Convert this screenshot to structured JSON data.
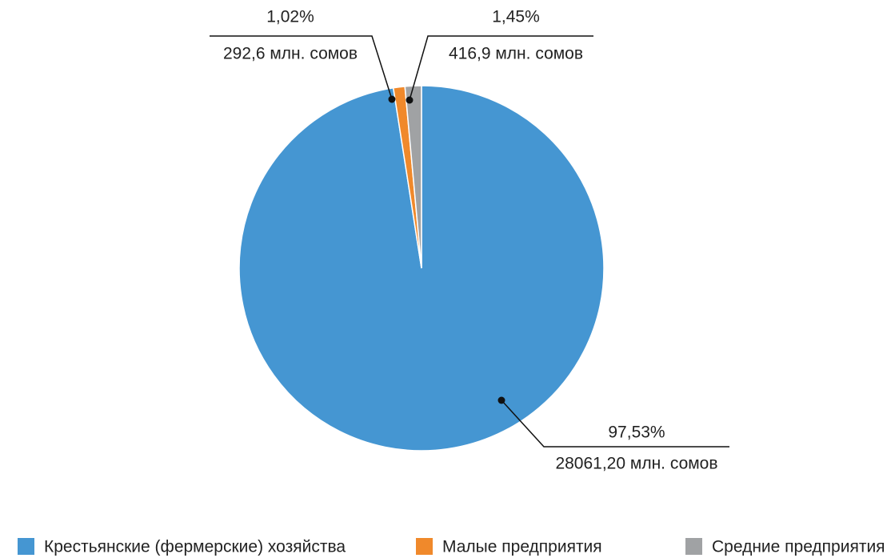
{
  "chart_data": {
    "type": "pie",
    "categories": [
      "Крестьянские (фермерские) хозяйства",
      "Малые предприятия",
      "Средние предприятия"
    ],
    "values": [
      97.53,
      1.02,
      1.45
    ],
    "value_labels": [
      "97,53%",
      "1,02%",
      "1,45%"
    ],
    "amount_labels": [
      "28061,20 млн. сомов",
      "292,6 млн. сомов",
      "416,9 млн. сомов"
    ],
    "colors": [
      "#4596d2",
      "#f0892b",
      "#a0a2a4"
    ],
    "legend": "bottom"
  }
}
